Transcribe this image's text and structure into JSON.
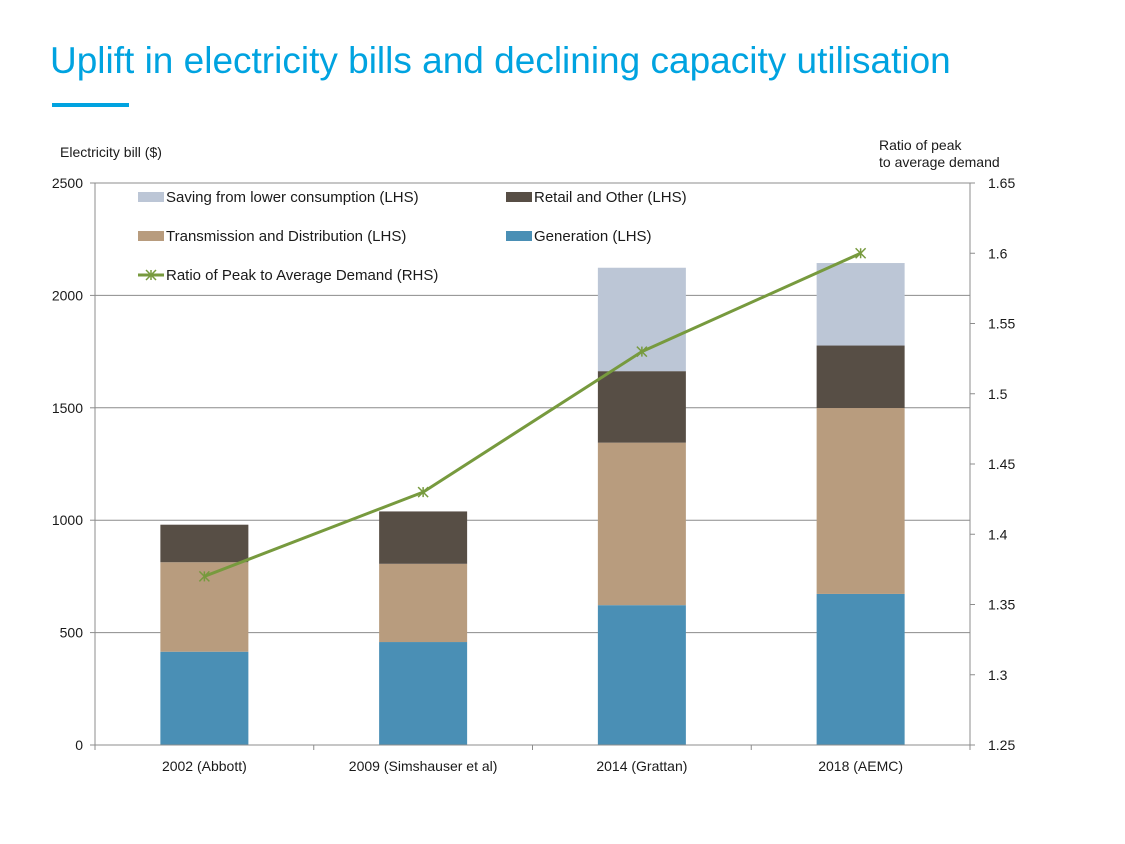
{
  "slide": {
    "title": "Uplift in electricity bills and declining capacity utilisation"
  },
  "colors": {
    "accent": "#00a3e0",
    "generation": "#4a8fb5",
    "transmission": "#b89c7e",
    "retail": "#574e45",
    "saving": "#bcc6d6",
    "ratio_line": "#779a3e"
  },
  "chart_data": {
    "type": "bar",
    "stacked": true,
    "categories": [
      "2002 (Abbott)",
      "2009 (Simshauser et al)",
      "2014 (Grattan)",
      "2018 (AEMC)"
    ],
    "series": [
      {
        "name": "Generation (LHS)",
        "key": "generation",
        "values": [
          415,
          458,
          622,
          672
        ]
      },
      {
        "name": "Transmission and Distribution (LHS)",
        "key": "transmission",
        "values": [
          398,
          348,
          723,
          827
        ]
      },
      {
        "name": "Retail and Other (LHS)",
        "key": "retail",
        "values": [
          167,
          233,
          318,
          278
        ]
      },
      {
        "name": "Saving from lower consumption (LHS)",
        "key": "saving",
        "values": [
          0,
          0,
          460,
          367
        ]
      }
    ],
    "line_series": {
      "name": "Ratio of Peak to Average Demand (RHS)",
      "key": "ratio_line",
      "axis": "right",
      "values": [
        1.37,
        1.43,
        1.53,
        1.6
      ]
    },
    "legend": {
      "placement": "top-left",
      "order": [
        "saving",
        "retail",
        "transmission",
        "generation",
        "ratio_line"
      ]
    },
    "ylabel": "Electricity bill ($)",
    "ylabel_right": "Ratio of peak to average demand",
    "ylim": [
      0,
      2500
    ],
    "y_ticks": [
      0,
      500,
      1000,
      1500,
      2000,
      2500
    ],
    "ylim_right": [
      1.25,
      1.65
    ],
    "y_ticks_right": [
      1.25,
      1.3,
      1.35,
      1.4,
      1.45,
      1.5,
      1.55,
      1.6,
      1.65
    ],
    "y_tick_labels_right": [
      "1.25",
      "1.3",
      "1.35",
      "1.4",
      "1.45",
      "1.5",
      "1.55",
      "1.6",
      "1.65"
    ],
    "grid": true
  }
}
